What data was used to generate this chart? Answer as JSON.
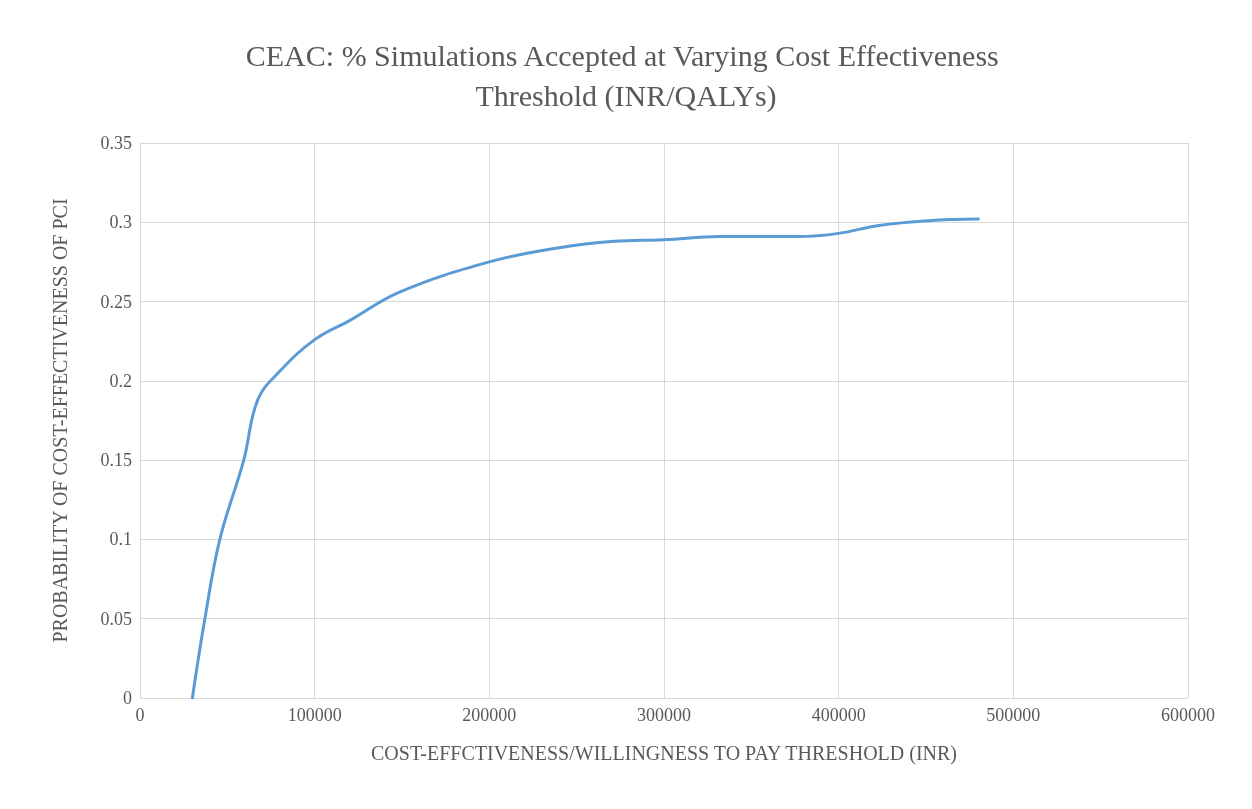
{
  "chart_data": {
    "type": "line",
    "title": "CEAC: % Simulations Accepted at Varying Cost Effectiveness Threshold (INR/QALYs)",
    "xlabel": "COST-EFFCTIVENESS/WILLINGNESS TO PAY THRESHOLD (INR)",
    "ylabel": "PROBABILITY OF COST-EFFECTIVENESS OF PCI",
    "x": [
      30000,
      37000,
      45700,
      59400,
      67400,
      80000,
      100000,
      120000,
      148600,
      200000,
      240000,
      271400,
      300000,
      331400,
      377000,
      400000,
      422900,
      451400,
      480000
    ],
    "series": [
      {
        "color": "#5b9bd5",
        "values": [
          0,
          0.049,
          0.1,
          0.15,
          0.188,
          0.206,
          0.226,
          0.238,
          0.256,
          0.275,
          0.284,
          0.288,
          0.289,
          0.291,
          0.291,
          0.293,
          0.298,
          0.301,
          0.302
        ]
      }
    ],
    "xlim": [
      0,
      600000
    ],
    "xticks": [
      0,
      100000,
      200000,
      300000,
      400000,
      500000,
      600000
    ],
    "ylim": [
      0,
      0.35
    ],
    "yticks": [
      0,
      0.05,
      0.1,
      0.15,
      0.2,
      0.25,
      0.3,
      0.35
    ],
    "grid": true,
    "marker": "none",
    "line_style": "solid"
  }
}
